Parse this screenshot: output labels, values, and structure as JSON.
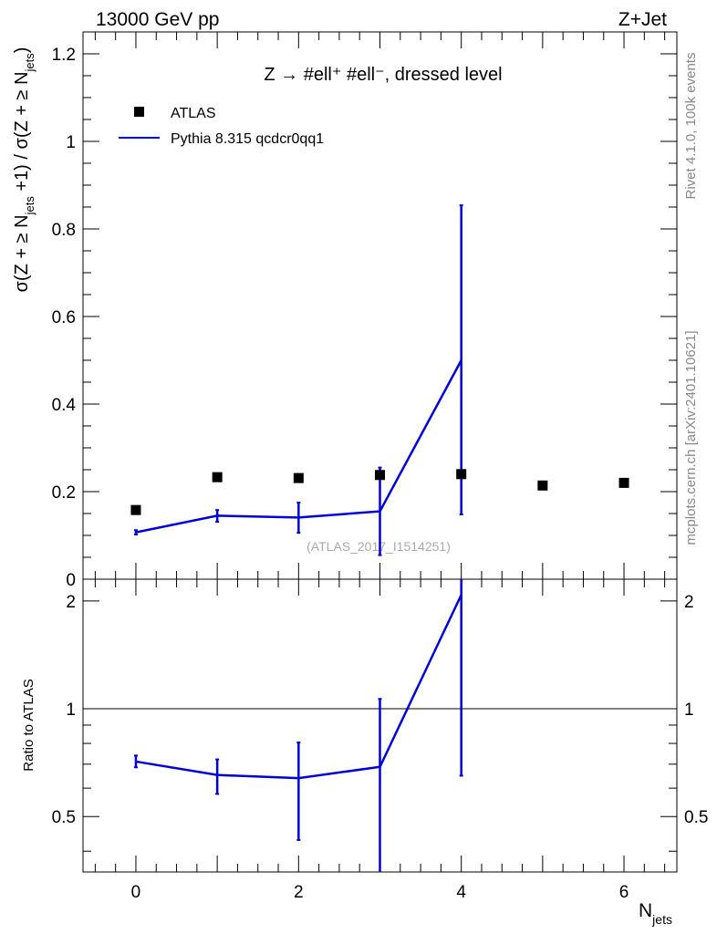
{
  "header": {
    "left": "13000 GeV pp",
    "right": "Z+Jet"
  },
  "side_labels": {
    "rivet": "Rivet 4.1.0,  100k events",
    "mcplots": "mcplots.cern.ch [arXiv:2401.10621]"
  },
  "chart_data": [
    {
      "type": "scatter",
      "title": "Z → #ell⁺ #ell⁻, dressed level",
      "xlabel": "N_jets",
      "ylabel": "σ(Z + ≥ N_jets +1) / σ(Z + ≥ N_jets)",
      "xlim": [
        -0.65,
        6.65
      ],
      "ylim": [
        0,
        1.25
      ],
      "x_ticks": [
        0,
        2,
        4,
        6
      ],
      "y_ticks": [
        0,
        0.2,
        0.4,
        0.6,
        0.8,
        1,
        1.2
      ],
      "y_tick_labels": [
        "0",
        "0.2",
        "0.4",
        "0.6",
        "0.8",
        "1",
        "1.2"
      ],
      "legend_position": "top-left",
      "watermark": "(ATLAS_2017_I1514251)",
      "series": [
        {
          "name": "ATLAS",
          "style": "markers",
          "color": "#000000",
          "x": [
            0,
            1,
            2,
            3,
            4,
            5,
            6
          ],
          "y": [
            0.158,
            0.233,
            0.231,
            0.238,
            0.24,
            0.214,
            0.22
          ]
        },
        {
          "name": "Pythia 8.315 qcdcr0qq1",
          "style": "line",
          "color": "#0000dd",
          "x": [
            0,
            1,
            2,
            3,
            4
          ],
          "y": [
            0.107,
            0.145,
            0.141,
            0.155,
            0.5
          ],
          "err_low": [
            0.102,
            0.131,
            0.106,
            0.055,
            0.148
          ],
          "err_high": [
            0.112,
            0.158,
            0.175,
            0.255,
            0.854
          ]
        }
      ]
    },
    {
      "type": "line",
      "ylabel": "Ratio to ATLAS",
      "xlim": [
        -0.65,
        6.65
      ],
      "ylim": [
        0.35,
        2.3
      ],
      "y_scale": "log",
      "x_ticks": [
        0,
        2,
        4,
        6
      ],
      "y_ticks": [
        0.5,
        1,
        2
      ],
      "y_tick_labels": [
        "0.5",
        "1",
        "2"
      ],
      "reference_line": 1,
      "series": [
        {
          "name": "Pythia 8.315 qcdcr0qq1",
          "color": "#0000dd",
          "x": [
            0,
            1,
            2,
            3,
            4
          ],
          "y": [
            0.712,
            0.653,
            0.64,
            0.688,
            2.08
          ],
          "err_low": [
            0.686,
            0.578,
            0.43,
            0.3,
            0.65
          ],
          "err_high": [
            0.74,
            0.722,
            0.805,
            1.065,
            2.35
          ]
        }
      ]
    }
  ]
}
